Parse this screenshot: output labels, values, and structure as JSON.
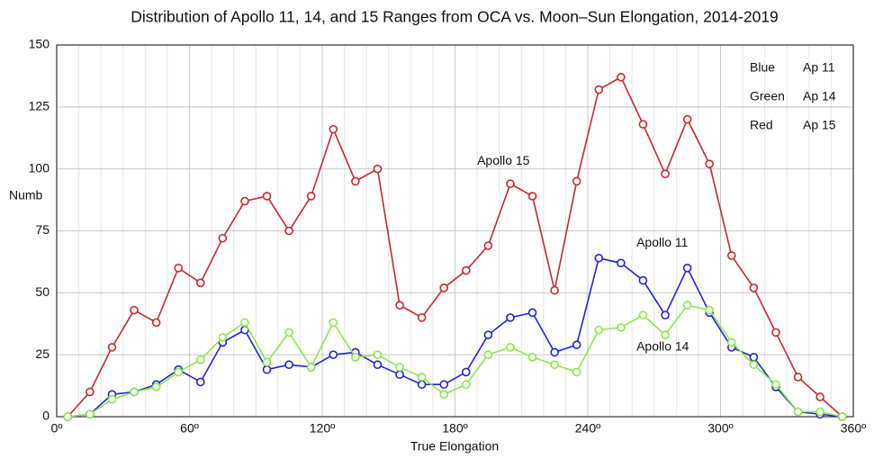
{
  "chart_data": {
    "type": "line",
    "title": "Distribution of Apollo 11, 14, and 15 Ranges from OCA vs. Moon–Sun Elongation, 2014-2019",
    "x_label": "True Elongation",
    "y_label": "Numb",
    "x": [
      5,
      15,
      25,
      35,
      45,
      55,
      65,
      75,
      85,
      95,
      105,
      115,
      125,
      135,
      145,
      155,
      165,
      175,
      185,
      195,
      205,
      215,
      225,
      235,
      245,
      255,
      265,
      275,
      285,
      295,
      305,
      315,
      325,
      335,
      345,
      355
    ],
    "series": [
      {
        "name": "Ap 11",
        "color_label": "Blue",
        "annotation": "Apollo 11",
        "color": "#2222dd",
        "values": [
          0,
          1,
          9,
          10,
          13,
          19,
          14,
          30,
          35,
          19,
          21,
          20,
          25,
          26,
          21,
          17,
          13,
          13,
          18,
          33,
          40,
          42,
          26,
          29,
          64,
          62,
          55,
          41,
          60,
          42,
          28,
          24,
          12,
          2,
          1,
          0
        ]
      },
      {
        "name": "Ap 14",
        "color_label": "Green",
        "annotation": "Apollo 14",
        "color": "#88e848",
        "values": [
          0,
          1,
          7,
          10,
          12,
          18,
          23,
          32,
          38,
          22,
          34,
          20,
          38,
          24,
          25,
          20,
          16,
          9,
          13,
          25,
          28,
          24,
          21,
          18,
          35,
          36,
          41,
          33,
          45,
          43,
          30,
          21,
          13,
          2,
          2,
          0
        ]
      },
      {
        "name": "Ap 15",
        "color_label": "Red",
        "annotation": "Apollo 15",
        "color": "#c8282a",
        "values": [
          0,
          10,
          28,
          43,
          38,
          60,
          54,
          72,
          87,
          89,
          75,
          89,
          116,
          95,
          100,
          45,
          40,
          52,
          59,
          69,
          94,
          89,
          51,
          95,
          132,
          137,
          118,
          98,
          120,
          102,
          65,
          52,
          34,
          16,
          8,
          0
        ]
      }
    ],
    "xlim": [
      0,
      360
    ],
    "xticks": [
      {
        "value": 0,
        "label": "0º"
      },
      {
        "value": 60,
        "label": "60º"
      },
      {
        "value": 120,
        "label": "120º"
      },
      {
        "value": 180,
        "label": "180º"
      },
      {
        "value": 240,
        "label": "240º"
      },
      {
        "value": 300,
        "label": "300º"
      },
      {
        "value": 360,
        "label": "360º"
      }
    ],
    "x_minor_ticks": [
      10,
      20,
      30,
      40,
      50,
      70,
      80,
      90,
      100,
      110,
      130,
      140,
      150,
      160,
      170,
      190,
      200,
      210,
      220,
      230,
      250,
      260,
      270,
      280,
      290,
      310,
      320,
      330,
      340,
      350
    ],
    "ylim": [
      0,
      150
    ],
    "yticks": [
      0,
      25,
      50,
      75,
      100,
      125,
      150
    ],
    "grid": true
  }
}
